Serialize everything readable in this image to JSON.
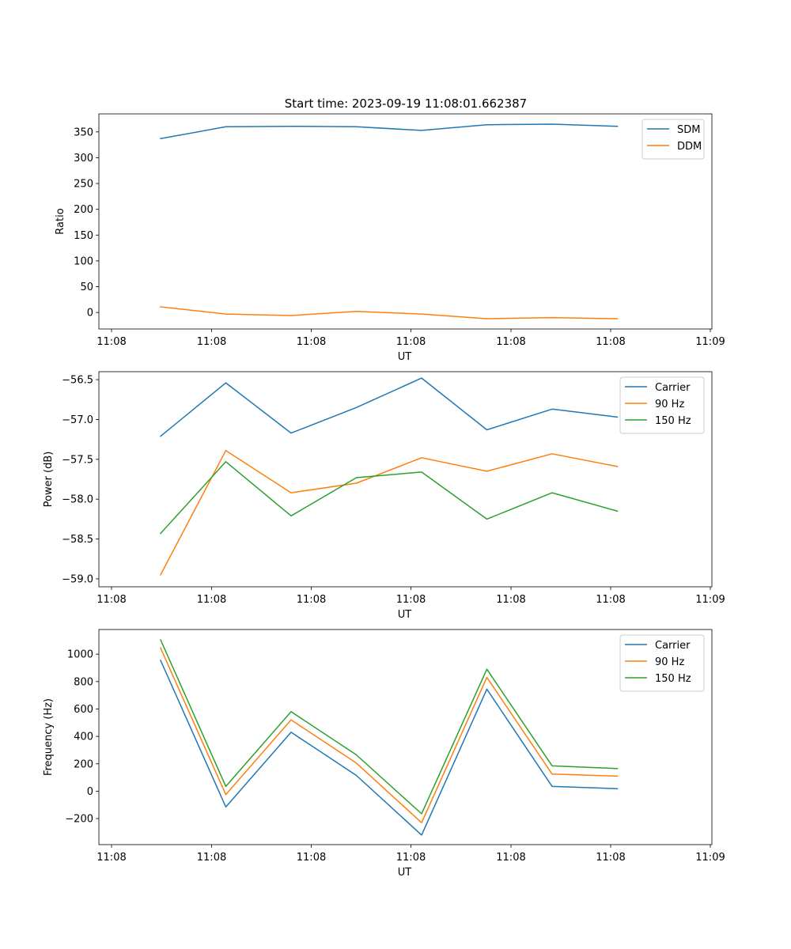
{
  "figure_title": "Start time: 2023-09-19 11:08:01.662387",
  "chart_data": [
    {
      "type": "line",
      "title": "Start time: 2023-09-19 11:08:01.662387",
      "xlabel": "UT",
      "ylabel": "Ratio",
      "x_tick_labels": [
        "11:08",
        "11:08",
        "11:08",
        "11:08",
        "11:08",
        "11:08",
        "11:09"
      ],
      "ylim": [
        -32,
        385
      ],
      "yticks": [
        0,
        50,
        100,
        150,
        200,
        250,
        300,
        350
      ],
      "ytick_labels": [
        "0",
        "50",
        "100",
        "150",
        "200",
        "250",
        "300",
        "350"
      ],
      "legend_position": "top-right",
      "grid": false,
      "series": [
        {
          "name": "SDM",
          "color": "#1f77b4",
          "values": [
            337,
            360,
            361,
            360,
            353,
            364,
            365,
            361
          ]
        },
        {
          "name": "DDM",
          "color": "#ff7f0e",
          "values": [
            11,
            -3,
            -6,
            2,
            -3,
            -12,
            -10,
            -12
          ]
        }
      ]
    },
    {
      "type": "line",
      "xlabel": "UT",
      "ylabel": "Power (dB)",
      "x_tick_labels": [
        "11:08",
        "11:08",
        "11:08",
        "11:08",
        "11:08",
        "11:08",
        "11:09"
      ],
      "ylim": [
        -59.1,
        -56.4
      ],
      "yticks": [
        -59.0,
        -58.5,
        -58.0,
        -57.5,
        -57.0,
        -56.5
      ],
      "ytick_labels": [
        "−59.0",
        "−58.5",
        "−58.0",
        "−57.5",
        "−57.0",
        "−56.5"
      ],
      "legend_position": "top-right",
      "grid": false,
      "series": [
        {
          "name": "Carrier",
          "color": "#1f77b4",
          "values": [
            -57.21,
            -56.54,
            -57.17,
            -56.85,
            -56.48,
            -57.13,
            -56.87,
            -56.97
          ]
        },
        {
          "name": "90 Hz",
          "color": "#ff7f0e",
          "values": [
            -58.95,
            -57.39,
            -57.92,
            -57.8,
            -57.48,
            -57.65,
            -57.43,
            -57.59
          ]
        },
        {
          "name": "150 Hz",
          "color": "#2ca02c",
          "values": [
            -58.43,
            -57.53,
            -58.21,
            -57.73,
            -57.66,
            -58.25,
            -57.92,
            -58.15
          ]
        }
      ]
    },
    {
      "type": "line",
      "xlabel": "UT",
      "ylabel": "Frequency (Hz)",
      "x_tick_labels": [
        "11:08",
        "11:08",
        "11:08",
        "11:08",
        "11:08",
        "11:08",
        "11:09"
      ],
      "ylim": [
        -390,
        1180
      ],
      "yticks": [
        -200,
        0,
        200,
        400,
        600,
        800,
        1000
      ],
      "ytick_labels": [
        "−200",
        "0",
        "200",
        "400",
        "600",
        "800",
        "1000"
      ],
      "legend_position": "top-right",
      "grid": false,
      "series": [
        {
          "name": "Carrier",
          "color": "#1f77b4",
          "values": [
            955,
            -115,
            430,
            115,
            -320,
            745,
            35,
            18
          ]
        },
        {
          "name": "90 Hz",
          "color": "#ff7f0e",
          "values": [
            1045,
            -25,
            520,
            205,
            -230,
            830,
            125,
            110
          ]
        },
        {
          "name": "150 Hz",
          "color": "#2ca02c",
          "values": [
            1105,
            35,
            580,
            265,
            -165,
            890,
            185,
            165
          ]
        }
      ]
    }
  ]
}
